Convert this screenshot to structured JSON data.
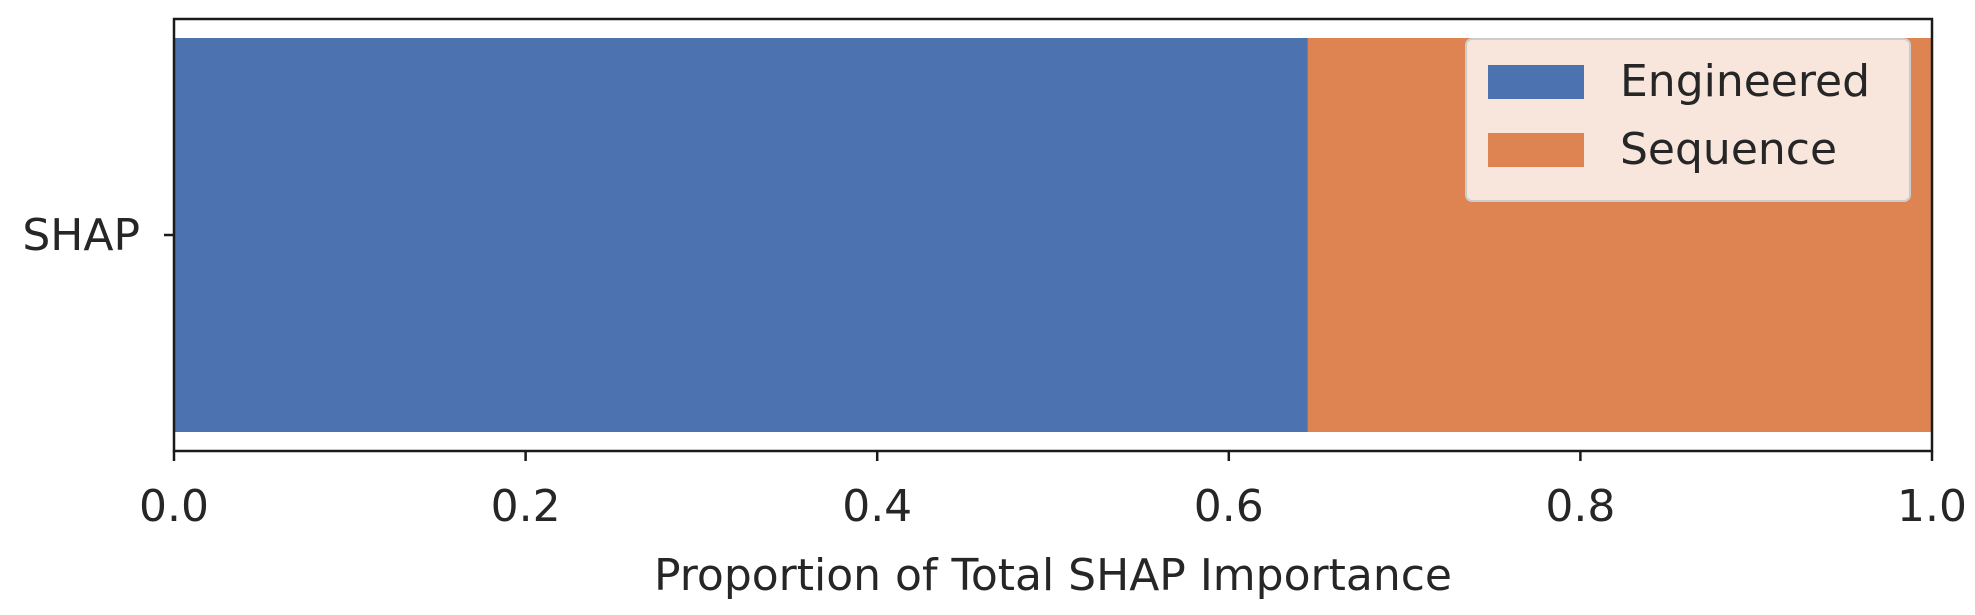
{
  "chart_data": {
    "type": "bar",
    "orientation": "horizontal",
    "stacked": true,
    "categories": [
      "SHAP"
    ],
    "series": [
      {
        "name": "Engineered",
        "values": [
          0.645
        ],
        "color": "#4c72b0"
      },
      {
        "name": "Sequence",
        "values": [
          0.355
        ],
        "color": "#dd8452"
      }
    ],
    "title": "",
    "xlabel": "Proportion of Total SHAP Importance",
    "ylabel": "",
    "xlim": [
      0.0,
      1.0
    ],
    "xticks": [
      "0.0",
      "0.2",
      "0.4",
      "0.6",
      "0.8",
      "1.0"
    ],
    "grid": false,
    "legend_position": "upper right"
  }
}
